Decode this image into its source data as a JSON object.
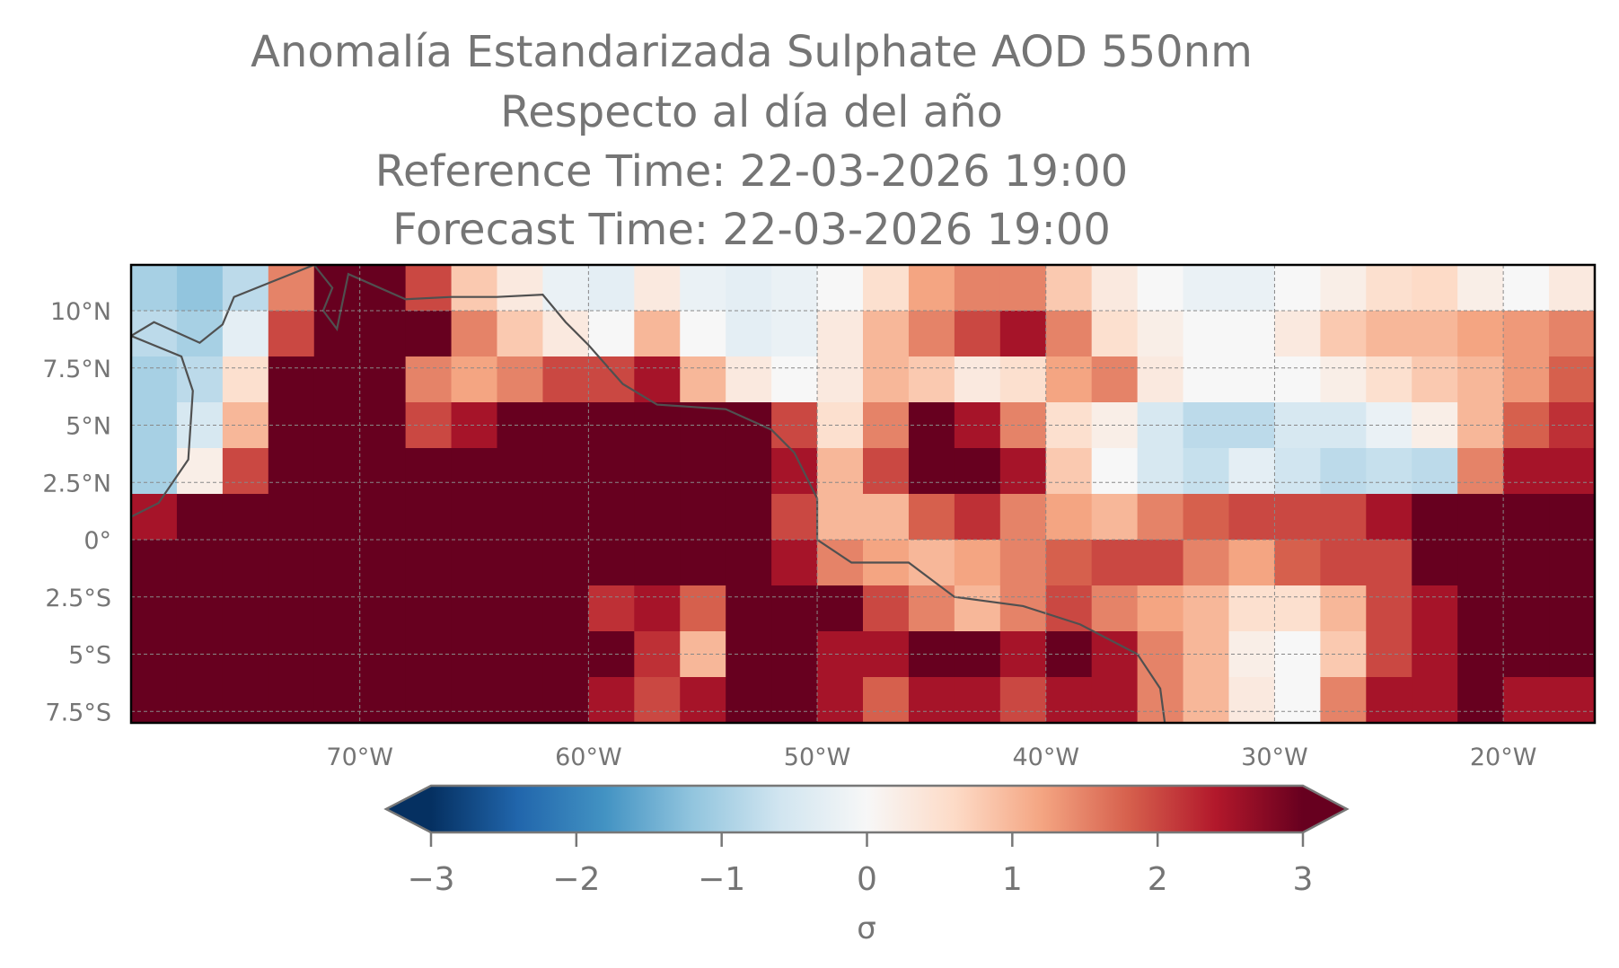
{
  "chart_data": {
    "type": "heatmap",
    "title_lines": [
      "Anomalía Estandarizada Sulphate AOD 550nm",
      "Respecto al día del año",
      "Reference Time: 22-03-2026 19:00",
      "Forecast Time: 22-03-2026 19:00"
    ],
    "xlim": [
      -80,
      -16
    ],
    "ylim": [
      -8,
      12
    ],
    "grid": true,
    "x_ticks": [
      -70,
      -60,
      -50,
      -40,
      -30,
      -20
    ],
    "x_tick_labels": [
      "70°W",
      "60°W",
      "50°W",
      "40°W",
      "30°W",
      "20°W"
    ],
    "y_ticks": [
      10,
      7.5,
      5,
      2.5,
      0,
      -2.5,
      -5,
      -7.5
    ],
    "y_tick_labels": [
      "10°N",
      "7.5°N",
      "5°N",
      "2.5°N",
      "0°",
      "2.5°S",
      "5°S",
      "7.5°S"
    ],
    "colorbar": {
      "colormap": "RdBu_r",
      "vmin": -3,
      "vmax": 3,
      "extend": "both",
      "ticks": [
        -3,
        -2,
        -1,
        0,
        1,
        2,
        3
      ],
      "tick_labels": [
        "−3",
        "−2",
        "−1",
        "0",
        "1",
        "2",
        "3"
      ],
      "label": "σ"
    },
    "grid_lon_centers": [
      -79,
      -77,
      -75,
      -73,
      -71,
      -69,
      -67,
      -65,
      -63,
      -61,
      -59,
      -57,
      -55,
      -53,
      -51,
      -49,
      -47,
      -45,
      -43,
      -41,
      -39,
      -37,
      -35,
      -33,
      -31,
      -29,
      -27,
      -25,
      -23,
      -21,
      -19,
      -17
    ],
    "grid_lat_centers": [
      11,
      9,
      7,
      5,
      3,
      1,
      -1,
      -3,
      -5,
      -7
    ],
    "values": [
      [
        -1,
        -1.2,
        -0.8,
        1.5,
        3,
        3,
        2,
        0.8,
        0.3,
        -0.2,
        -0.3,
        0.3,
        -0.2,
        -0.3,
        -0.2,
        0,
        0.5,
        1.2,
        1.5,
        1.5,
        0.8,
        0.3,
        0,
        -0.2,
        -0.2,
        0,
        0.2,
        0.5,
        0.6,
        0.2,
        0,
        0.3
      ],
      [
        -0.8,
        -1,
        -0.3,
        2,
        3,
        3,
        3,
        1.5,
        0.8,
        0.3,
        0,
        1,
        0,
        -0.3,
        -0.2,
        0.3,
        1,
        1.5,
        2,
        2.5,
        1.5,
        0.5,
        0.2,
        0,
        0,
        0.3,
        0.8,
        1,
        1,
        1.2,
        1.3,
        1.5
      ],
      [
        -1,
        -0.8,
        0.5,
        3,
        3,
        3,
        1.5,
        1.2,
        1.5,
        2,
        2,
        2.5,
        1,
        0.3,
        0,
        0.3,
        1,
        0.8,
        0.3,
        0.5,
        1.2,
        1.5,
        0.3,
        0,
        0,
        0,
        0.2,
        0.5,
        0.8,
        1,
        1.3,
        1.8
      ],
      [
        -1,
        -0.5,
        1,
        3,
        3,
        3,
        2,
        2.5,
        3,
        3,
        3,
        3,
        3,
        3,
        2,
        0.5,
        1.5,
        3,
        2.5,
        1.5,
        0.5,
        0.2,
        -0.5,
        -0.8,
        -0.8,
        -0.5,
        -0.5,
        -0.2,
        0.2,
        1,
        1.8,
        2.2
      ],
      [
        -1,
        0.2,
        2,
        3,
        3,
        3,
        3,
        3,
        3,
        3,
        3,
        3,
        3,
        3,
        2.5,
        1,
        2,
        3,
        3,
        2.5,
        0.8,
        0,
        -0.5,
        -0.7,
        -0.3,
        -0.6,
        -0.8,
        -0.7,
        -0.8,
        1.5,
        2.5,
        2.5
      ],
      [
        2.5,
        3,
        3,
        3,
        3,
        3,
        3,
        3,
        3,
        3,
        3,
        3,
        3,
        3,
        2,
        1,
        1,
        1.8,
        2.2,
        1.5,
        1.2,
        1,
        1.5,
        1.8,
        2,
        2,
        2,
        2.5,
        3,
        3,
        3,
        3
      ],
      [
        3,
        3,
        3,
        3,
        3,
        3,
        3,
        3,
        3,
        3,
        3,
        3,
        3,
        3,
        2.5,
        1.5,
        1.2,
        1,
        1.2,
        1.5,
        1.8,
        2,
        2,
        1.5,
        1.2,
        1.8,
        2,
        2,
        3,
        3,
        3,
        3
      ],
      [
        3,
        3,
        3,
        3,
        3,
        3,
        3,
        3,
        3,
        3,
        2.2,
        2.5,
        1.8,
        3,
        3,
        3,
        2,
        1.5,
        1,
        1.5,
        2,
        1.5,
        1.2,
        1,
        0.5,
        0.5,
        1,
        2,
        2.5,
        3,
        3,
        3
      ],
      [
        3,
        3,
        3,
        3,
        3,
        3,
        3,
        3,
        3,
        3,
        3,
        2.2,
        1,
        3,
        3,
        2.5,
        2.5,
        3,
        3,
        2.5,
        3,
        2.5,
        1.5,
        1,
        0.2,
        0,
        0.8,
        2,
        2.5,
        3,
        3,
        3
      ],
      [
        3,
        3,
        3,
        3,
        3,
        3,
        3,
        3,
        3,
        3,
        2.5,
        2,
        2.5,
        3,
        3,
        2.5,
        1.8,
        2.5,
        2.5,
        2,
        2.5,
        2.5,
        1.5,
        1,
        0.3,
        0,
        1.5,
        2.5,
        2.5,
        3,
        2.5,
        2.5
      ]
    ]
  }
}
